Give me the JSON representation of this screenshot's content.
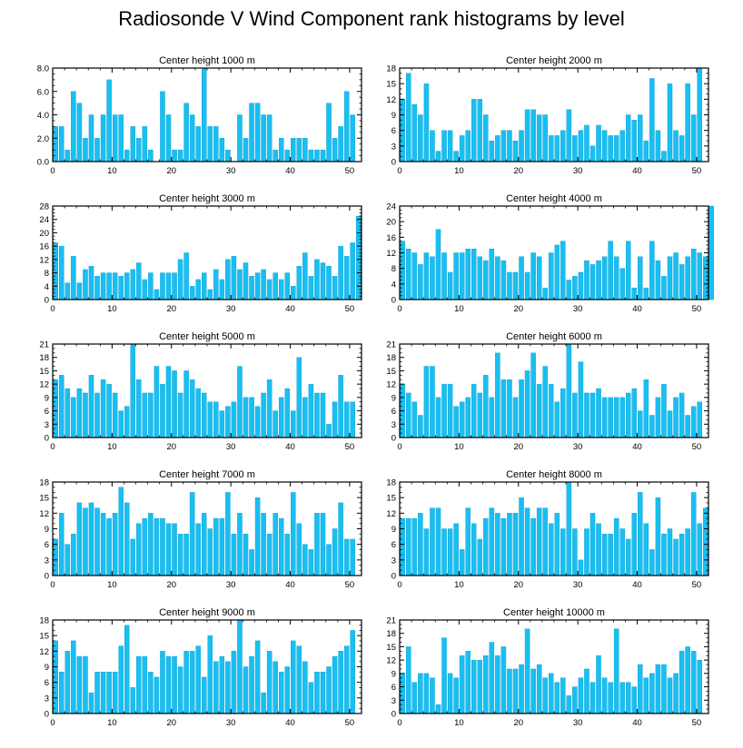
{
  "title": "Radiosonde V Wind Component rank histograms by level",
  "colors": {
    "bar": "#18BFF2",
    "bar_edge": "#0C9CCB",
    "axis": "#000000"
  },
  "chart_data": [
    {
      "type": "bar",
      "title": "Center height 1000 m",
      "ylim": [
        0,
        8
      ],
      "yticks": [
        0,
        2,
        4,
        6,
        8
      ],
      "ytick_labels": [
        "0.0",
        "2.0",
        "4.0",
        "6.0",
        "8.0"
      ],
      "xticks": [
        0,
        10,
        20,
        30,
        40,
        50
      ],
      "xlim": [
        0,
        52
      ],
      "values": [
        3,
        3,
        1,
        6,
        5,
        2,
        4,
        2,
        4,
        7,
        4,
        4,
        1,
        3,
        2,
        3,
        1,
        0,
        6,
        4,
        1,
        1,
        5,
        4,
        3,
        8,
        3,
        3,
        2,
        1,
        0,
        4,
        2,
        5,
        5,
        4,
        4,
        1,
        2,
        1,
        2,
        2,
        2,
        1,
        1,
        1,
        5,
        2,
        3,
        6,
        4
      ]
    },
    {
      "type": "bar",
      "title": "Center height 2000 m",
      "ylim": [
        0,
        18
      ],
      "yticks": [
        0,
        3,
        6,
        9,
        12,
        15,
        18
      ],
      "ytick_labels": [
        "0",
        "3",
        "6",
        "9",
        "12",
        "15",
        "18"
      ],
      "xticks": [
        0,
        10,
        20,
        30,
        40,
        50
      ],
      "xlim": [
        0,
        52
      ],
      "values": [
        12,
        17,
        11,
        9,
        15,
        6,
        2,
        6,
        6,
        2,
        5,
        6,
        12,
        12,
        9,
        4,
        5,
        6,
        6,
        4,
        6,
        10,
        10,
        9,
        9,
        5,
        5,
        6,
        10,
        5,
        6,
        7,
        3,
        7,
        6,
        5,
        5,
        6,
        9,
        8,
        9,
        4,
        16,
        6,
        2,
        15,
        6,
        5,
        15,
        9,
        18
      ]
    },
    {
      "type": "bar",
      "title": "Center height 3000 m",
      "ylim": [
        0,
        28
      ],
      "yticks": [
        0,
        4,
        8,
        12,
        16,
        20,
        24,
        28
      ],
      "ytick_labels": [
        "0",
        "4",
        "8",
        "12",
        "16",
        "20",
        "24",
        "28"
      ],
      "xticks": [
        0,
        10,
        20,
        30,
        40,
        50
      ],
      "xlim": [
        0,
        52
      ],
      "values": [
        17,
        16,
        5,
        13,
        5,
        9,
        10,
        7,
        8,
        8,
        8,
        7,
        8,
        9,
        11,
        6,
        8,
        3,
        8,
        8,
        8,
        12,
        14,
        4,
        6,
        8,
        3,
        9,
        6,
        12,
        13,
        9,
        11,
        7,
        8,
        9,
        6,
        8,
        6,
        8,
        4,
        10,
        14,
        7,
        12,
        11,
        10,
        7,
        16,
        13,
        17,
        25
      ]
    },
    {
      "type": "bar",
      "title": "Center height 4000 m",
      "ylim": [
        0,
        24
      ],
      "yticks": [
        0,
        4,
        8,
        12,
        16,
        20,
        24
      ],
      "ytick_labels": [
        "0",
        "4",
        "8",
        "12",
        "16",
        "20",
        "24"
      ],
      "xticks": [
        0,
        10,
        20,
        30,
        40,
        50
      ],
      "xlim": [
        0,
        52
      ],
      "values": [
        15,
        13,
        12,
        9,
        12,
        11,
        18,
        12,
        7,
        12,
        12,
        13,
        13,
        11,
        10,
        13,
        11,
        10,
        7,
        7,
        11,
        7,
        12,
        11,
        3,
        12,
        14,
        15,
        5,
        6,
        7,
        10,
        9,
        10,
        11,
        15,
        11,
        8,
        15,
        3,
        11,
        3,
        15,
        10,
        6,
        11,
        12,
        9,
        11,
        13,
        12,
        11,
        24
      ]
    },
    {
      "type": "bar",
      "title": "Center height 5000 m",
      "ylim": [
        0,
        21
      ],
      "yticks": [
        0,
        3,
        6,
        9,
        12,
        15,
        18,
        21
      ],
      "ytick_labels": [
        "0",
        "3",
        "6",
        "9",
        "12",
        "15",
        "18",
        "21"
      ],
      "xticks": [
        0,
        10,
        20,
        30,
        40,
        50
      ],
      "xlim": [
        0,
        52
      ],
      "values": [
        13,
        14,
        11,
        9,
        11,
        10,
        14,
        10,
        13,
        12,
        10,
        6,
        7,
        21,
        13,
        10,
        10,
        16,
        12,
        16,
        15,
        10,
        15,
        13,
        11,
        10,
        8,
        8,
        6,
        7,
        8,
        16,
        9,
        9,
        7,
        10,
        13,
        6,
        9,
        11,
        6,
        18,
        9,
        12,
        10,
        10,
        3,
        8,
        14,
        8,
        8
      ]
    },
    {
      "type": "bar",
      "title": "Center height 6000 m",
      "ylim": [
        0,
        21
      ],
      "yticks": [
        0,
        3,
        6,
        9,
        12,
        15,
        18,
        21
      ],
      "ytick_labels": [
        "0",
        "3",
        "6",
        "9",
        "12",
        "15",
        "18",
        "21"
      ],
      "xticks": [
        0,
        10,
        20,
        30,
        40,
        50
      ],
      "xlim": [
        0,
        52
      ],
      "values": [
        12,
        10,
        8,
        5,
        16,
        16,
        9,
        12,
        12,
        7,
        8,
        9,
        12,
        10,
        14,
        9,
        19,
        13,
        13,
        9,
        13,
        15,
        19,
        12,
        16,
        12,
        8,
        11,
        21,
        10,
        17,
        10,
        10,
        11,
        9,
        9,
        9,
        9,
        10,
        11,
        6,
        13,
        5,
        9,
        12,
        6,
        9,
        10,
        5,
        7,
        8
      ]
    },
    {
      "type": "bar",
      "title": "Center height 7000 m",
      "ylim": [
        0,
        18
      ],
      "yticks": [
        0,
        3,
        6,
        9,
        12,
        15,
        18
      ],
      "ytick_labels": [
        "0",
        "3",
        "6",
        "9",
        "12",
        "15",
        "18"
      ],
      "xticks": [
        0,
        10,
        20,
        30,
        40,
        50
      ],
      "xlim": [
        0,
        52
      ],
      "values": [
        7,
        12,
        6,
        8,
        14,
        13,
        14,
        13,
        12,
        11,
        12,
        17,
        14,
        7,
        10,
        11,
        12,
        11,
        11,
        10,
        10,
        8,
        8,
        16,
        10,
        12,
        9,
        11,
        11,
        16,
        8,
        12,
        8,
        5,
        15,
        12,
        8,
        12,
        11,
        8,
        16,
        10,
        6,
        5,
        12,
        12,
        6,
        9,
        14,
        7,
        7
      ]
    },
    {
      "type": "bar",
      "title": "Center height 8000 m",
      "ylim": [
        0,
        18
      ],
      "yticks": [
        0,
        3,
        6,
        9,
        12,
        15,
        18
      ],
      "ytick_labels": [
        "0",
        "3",
        "6",
        "9",
        "12",
        "15",
        "18"
      ],
      "xticks": [
        0,
        10,
        20,
        30,
        40,
        50
      ],
      "xlim": [
        0,
        52
      ],
      "values": [
        11,
        11,
        11,
        12,
        9,
        13,
        13,
        9,
        9,
        10,
        5,
        13,
        10,
        7,
        11,
        13,
        12,
        11,
        12,
        12,
        15,
        13,
        11,
        13,
        13,
        10,
        12,
        9,
        18,
        9,
        3,
        9,
        12,
        10,
        8,
        8,
        11,
        9,
        7,
        12,
        16,
        10,
        5,
        15,
        8,
        9,
        7,
        8,
        9,
        16,
        10,
        13
      ]
    },
    {
      "type": "bar",
      "title": "Center height 9000 m",
      "ylim": [
        0,
        18
      ],
      "yticks": [
        0,
        3,
        6,
        9,
        12,
        15,
        18
      ],
      "ytick_labels": [
        "0",
        "3",
        "6",
        "9",
        "12",
        "15",
        "18"
      ],
      "xticks": [
        0,
        10,
        20,
        30,
        40,
        50
      ],
      "xlim": [
        0,
        52
      ],
      "values": [
        14,
        8,
        12,
        14,
        11,
        11,
        4,
        8,
        8,
        8,
        8,
        13,
        17,
        5,
        11,
        11,
        8,
        7,
        12,
        11,
        11,
        9,
        12,
        12,
        13,
        7,
        15,
        10,
        11,
        10,
        12,
        18,
        9,
        11,
        14,
        4,
        12,
        10,
        8,
        9,
        14,
        13,
        10,
        6,
        8,
        8,
        9,
        11,
        12,
        13,
        16
      ]
    },
    {
      "type": "bar",
      "title": "Center height 10000 m",
      "ylim": [
        0,
        21
      ],
      "yticks": [
        0,
        3,
        6,
        9,
        12,
        15,
        18,
        21
      ],
      "ytick_labels": [
        "0",
        "3",
        "6",
        "9",
        "12",
        "15",
        "18",
        "21"
      ],
      "xticks": [
        0,
        10,
        20,
        30,
        40,
        50
      ],
      "xlim": [
        0,
        52
      ],
      "values": [
        9,
        15,
        7,
        9,
        9,
        8,
        2,
        17,
        9,
        8,
        13,
        14,
        12,
        12,
        13,
        16,
        13,
        15,
        10,
        10,
        11,
        19,
        10,
        11,
        8,
        9,
        7,
        8,
        4,
        6,
        8,
        10,
        7,
        13,
        8,
        7,
        19,
        7,
        7,
        6,
        11,
        8,
        9,
        11,
        11,
        8,
        9,
        14,
        15,
        14,
        12
      ]
    }
  ]
}
